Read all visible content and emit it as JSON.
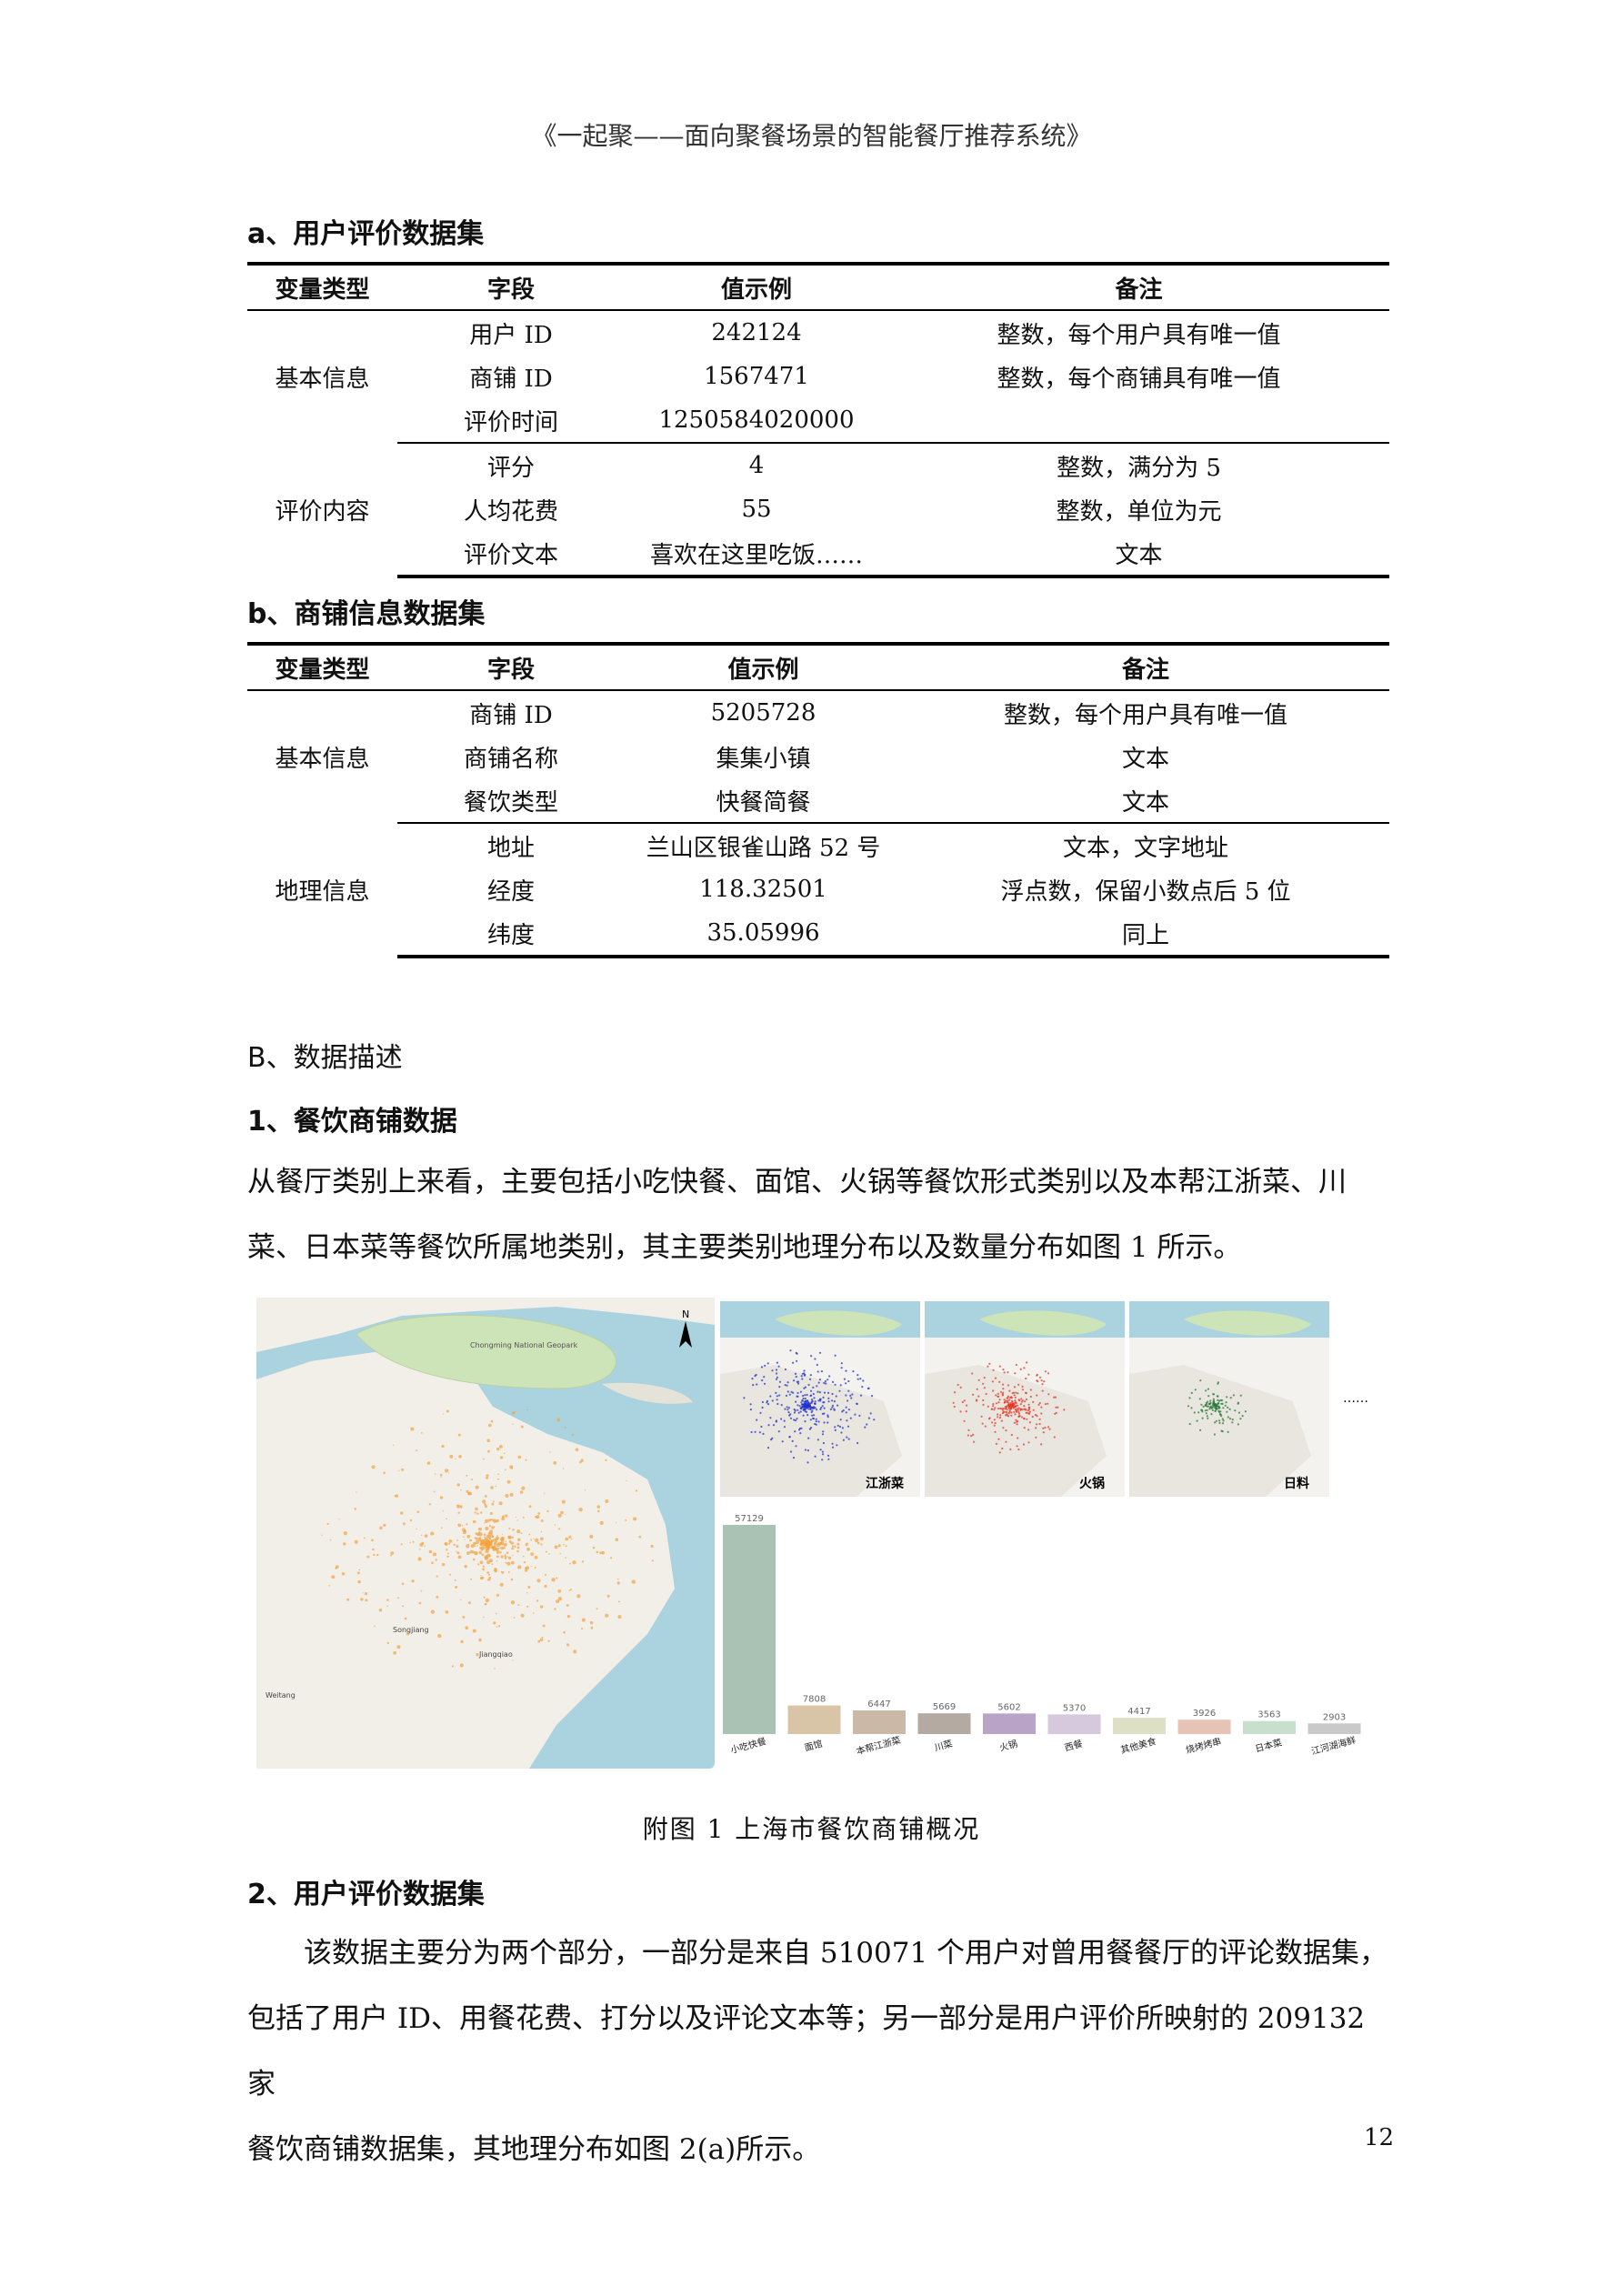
{
  "header": "《一起聚——面向聚餐场景的智能餐厅推荐系统》",
  "table_a": {
    "title": "a、用户评价数据集",
    "columns": [
      "变量类型",
      "字段",
      "值示例",
      "备注"
    ],
    "groups": [
      {
        "name": "基本信息",
        "rows": [
          {
            "field": "用户 ID",
            "example": "242124",
            "note": "整数，每个用户具有唯一值"
          },
          {
            "field": "商铺 ID",
            "example": "1567471",
            "note": "整数，每个商铺具有唯一值"
          },
          {
            "field": "评价时间",
            "example": "1250584020000",
            "note": ""
          }
        ]
      },
      {
        "name": "评价内容",
        "rows": [
          {
            "field": "评分",
            "example": "4",
            "note": "整数，满分为 5"
          },
          {
            "field": "人均花费",
            "example": "55",
            "note": "整数，单位为元"
          },
          {
            "field": "评价文本",
            "example": "喜欢在这里吃饭……",
            "note": "文本"
          }
        ]
      }
    ]
  },
  "table_b": {
    "title": "b、商铺信息数据集",
    "columns": [
      "变量类型",
      "字段",
      "值示例",
      "备注"
    ],
    "groups": [
      {
        "name": "基本信息",
        "rows": [
          {
            "field": "商铺 ID",
            "example": "5205728",
            "note": "整数，每个用户具有唯一值"
          },
          {
            "field": "商铺名称",
            "example": "集集小镇",
            "note": "文本"
          },
          {
            "field": "餐饮类型",
            "example": "快餐简餐",
            "note": "文本"
          }
        ]
      },
      {
        "name": "地理信息",
        "rows": [
          {
            "field": "地址",
            "example": "兰山区银雀山路 52 号",
            "note": "文本，文字地址"
          },
          {
            "field": "经度",
            "example": "118.32501",
            "note": "浮点数，保留小数点后 5 位"
          },
          {
            "field": "纬度",
            "example": "35.05996",
            "note": "同上"
          }
        ]
      }
    ]
  },
  "section_b": "B、数据描述",
  "section_1": "1、餐饮商铺数据",
  "para_1": [
    "从餐厅类别上来看，主要包括小吃快餐、面馆、火锅等餐饮形式类别以及本帮江浙菜、川",
    "菜、日本菜等餐饮所属地类别，其主要类别地理分布以及数量分布如图 1 所示。"
  ],
  "figure": {
    "main_map_labels": [
      "Chongming National Geopark",
      "Songjiang",
      "Jiangqiao",
      "Weitang"
    ],
    "small_maps": [
      {
        "label": "江浙菜",
        "color": "#2233cc"
      },
      {
        "label": "火锅",
        "color": "#e8382b"
      },
      {
        "label": "日料",
        "color": "#2a7a3a"
      }
    ],
    "ellipsis": "……",
    "north": "N"
  },
  "chart_data": {
    "type": "bar",
    "categories": [
      "小吃快餐",
      "面馆",
      "本帮江浙菜",
      "川菜",
      "火锅",
      "西餐",
      "其他美食",
      "烧烤烤串",
      "日本菜",
      "江河湖海鲜"
    ],
    "values": [
      57129,
      7808,
      6447,
      5669,
      5602,
      5370,
      4417,
      3926,
      3563,
      2903
    ],
    "colors": [
      "#a9c2b4",
      "#d8c4a6",
      "#c9b9a6",
      "#b4aaa2",
      "#b9a3c6",
      "#d7c9dd",
      "#dde0c4",
      "#e7c3b6",
      "#c9dfcd",
      "#c9c9c9"
    ],
    "ylim": [
      0,
      57129
    ]
  },
  "caption": "附图 1  上海市餐饮商铺概况",
  "section_2": "2、用户评价数据集",
  "para_2": [
    "该数据主要分为两个部分，一部分是来自 510071 个用户对曾用餐餐厅的评论数据集，",
    "包括了用户 ID、用餐花费、打分以及评论文本等；另一部分是用户评价所映射的 209132 家",
    "餐饮商铺数据集，其地理分布如图 2(a)所示。"
  ],
  "page_number": "12"
}
